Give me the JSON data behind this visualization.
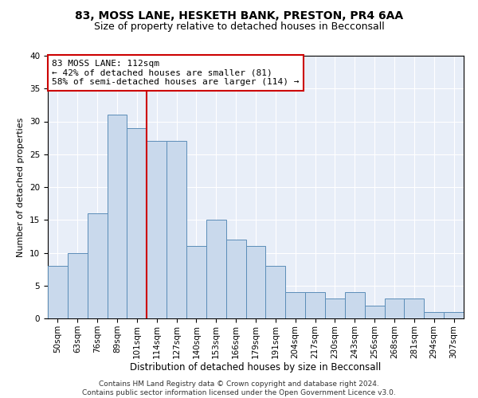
{
  "title1": "83, MOSS LANE, HESKETH BANK, PRESTON, PR4 6AA",
  "title2": "Size of property relative to detached houses in Becconsall",
  "xlabel": "Distribution of detached houses by size in Becconsall",
  "ylabel": "Number of detached properties",
  "categories": [
    "50sqm",
    "63sqm",
    "76sqm",
    "89sqm",
    "101sqm",
    "114sqm",
    "127sqm",
    "140sqm",
    "153sqm",
    "166sqm",
    "179sqm",
    "191sqm",
    "204sqm",
    "217sqm",
    "230sqm",
    "243sqm",
    "256sqm",
    "268sqm",
    "281sqm",
    "294sqm",
    "307sqm"
  ],
  "values": [
    8,
    10,
    16,
    31,
    29,
    27,
    27,
    11,
    15,
    12,
    11,
    8,
    4,
    4,
    3,
    4,
    2,
    3,
    3,
    1,
    1
  ],
  "bar_color": "#c9d9ec",
  "bar_edge_color": "#5b8db8",
  "vline_x": 4.5,
  "vline_color": "#cc0000",
  "annotation_text": "83 MOSS LANE: 112sqm\n← 42% of detached houses are smaller (81)\n58% of semi-detached houses are larger (114) →",
  "annotation_box_color": "#ffffff",
  "annotation_box_edge": "#cc0000",
  "ylim": [
    0,
    40
  ],
  "yticks": [
    0,
    5,
    10,
    15,
    20,
    25,
    30,
    35,
    40
  ],
  "bg_color": "#e8eef8",
  "footer1": "Contains HM Land Registry data © Crown copyright and database right 2024.",
  "footer2": "Contains public sector information licensed under the Open Government Licence v3.0.",
  "title1_fontsize": 10,
  "title2_fontsize": 9,
  "xlabel_fontsize": 8.5,
  "ylabel_fontsize": 8,
  "tick_fontsize": 7.5,
  "annotation_fontsize": 8,
  "footer_fontsize": 6.5
}
